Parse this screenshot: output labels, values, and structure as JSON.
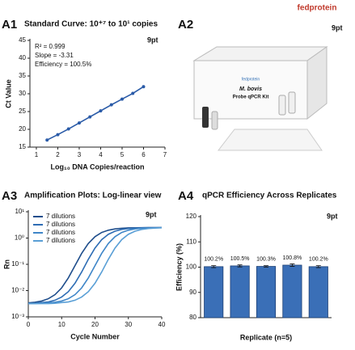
{
  "brand": "fedprotein",
  "panels": [
    {
      "label": "A1",
      "note": "9pt"
    },
    {
      "label": "A2",
      "note": "9pt"
    },
    {
      "label": "A3",
      "note": "9pt"
    },
    {
      "label": "A4",
      "note": "9pt"
    }
  ],
  "product": {
    "brand": "fedprotein",
    "name": "M. bovis",
    "kit": "Probe qPCR Kit"
  },
  "chart_data": [
    {
      "type": "line",
      "title": "Standard Curve: 10⁺⁷ to 10¹ copies",
      "annotations": [
        "R² = 0.999",
        "Slope = -3.31",
        "Efficiency = 100.5%"
      ],
      "xlabel": "Log₁₀ DNA Copies/reaction",
      "ylabel": "Ct Value",
      "x": [
        1.5,
        2,
        2.5,
        3,
        3.5,
        4,
        4.5,
        5,
        5.5,
        6
      ],
      "values": [
        17,
        18.5,
        20.1,
        21.8,
        23.5,
        25.2,
        26.9,
        28.5,
        30.1,
        32
      ],
      "color": "#2a5ba8",
      "markers": true,
      "xlim": [
        0.7,
        7
      ],
      "xticks": [
        1,
        2,
        3,
        4,
        5,
        6,
        7
      ],
      "ylim": [
        15,
        45
      ],
      "yticks": [
        15,
        20,
        25,
        30,
        35,
        40,
        45
      ]
    },
    {
      "type": "line",
      "title": "Amplification Plots: Log-linear view",
      "xlabel": "Cycle Number",
      "ylabel": "Rn",
      "yscale": "log",
      "legend": "upper left",
      "x": [
        0,
        2,
        4,
        6,
        8,
        10,
        12,
        14,
        16,
        18,
        20,
        22,
        24,
        26,
        28,
        30,
        32,
        34,
        36,
        38,
        40
      ],
      "series": [
        {
          "name": "7 dilutions",
          "color": "#1f4e8c",
          "values": [
            0.0034,
            0.0036,
            0.004,
            0.0049,
            0.007,
            0.0127,
            0.0304,
            0.0891,
            0.261,
            0.623,
            1.13,
            1.63,
            1.99,
            2.23,
            2.36,
            2.43,
            2.47,
            2.49,
            2.5,
            2.5,
            2.51
          ]
        },
        {
          "name": "7 dilutions",
          "color": "#2e6db4",
          "values": [
            0.0032,
            0.0033,
            0.0035,
            0.0037,
            0.0043,
            0.0057,
            0.0091,
            0.0191,
            0.0512,
            0.155,
            0.417,
            0.869,
            1.39,
            1.83,
            2.13,
            2.3,
            2.4,
            2.45,
            2.48,
            2.49,
            2.5
          ]
        },
        {
          "name": "7 dilutions",
          "color": "#3f86c8",
          "values": [
            0.0032,
            0.0032,
            0.0033,
            0.0034,
            0.0036,
            0.004,
            0.0049,
            0.007,
            0.0127,
            0.0304,
            0.0891,
            0.261,
            0.623,
            1.13,
            1.63,
            1.99,
            2.23,
            2.36,
            2.43,
            2.47,
            2.49
          ]
        },
        {
          "name": "7 dilutions",
          "color": "#5a9fd6",
          "values": [
            0.0032,
            0.0032,
            0.0032,
            0.0032,
            0.0033,
            0.0035,
            0.0037,
            0.0043,
            0.0057,
            0.0091,
            0.0191,
            0.0512,
            0.155,
            0.417,
            0.869,
            1.39,
            1.83,
            2.13,
            2.3,
            2.4,
            2.45
          ]
        }
      ],
      "xlim": [
        0,
        40
      ],
      "xticks": [
        0,
        10,
        20,
        30,
        40
      ],
      "ylim": [
        0.001,
        10
      ],
      "yticks": [
        {
          "value": 0.001,
          "label": "10⁻³"
        },
        {
          "value": 0.01,
          "label": "10⁻²"
        },
        {
          "value": 0.1,
          "label": "10⁻¹"
        },
        {
          "value": 1,
          "label": "10⁰"
        },
        {
          "value": 10,
          "label": "10¹"
        }
      ]
    },
    {
      "type": "bar",
      "title": "qPCR Efficiency Across Replicates",
      "xlabel": "Replicate (n=5)",
      "ylabel": "Efficiency (%)",
      "categories": [
        null,
        null,
        null,
        null,
        null
      ],
      "values": [
        100.2,
        100.5,
        100.3,
        100.8,
        100.2
      ],
      "value_labels": [
        "100.2%",
        "100.5%",
        "100.3%",
        "100.8%",
        "100.2%"
      ],
      "errors": [
        0.4,
        0.4,
        0.3,
        0.5,
        0.4
      ],
      "color": "#3a6fb7",
      "ylim": [
        80,
        120
      ],
      "yticks": [
        80,
        90,
        100,
        110,
        120
      ]
    }
  ]
}
